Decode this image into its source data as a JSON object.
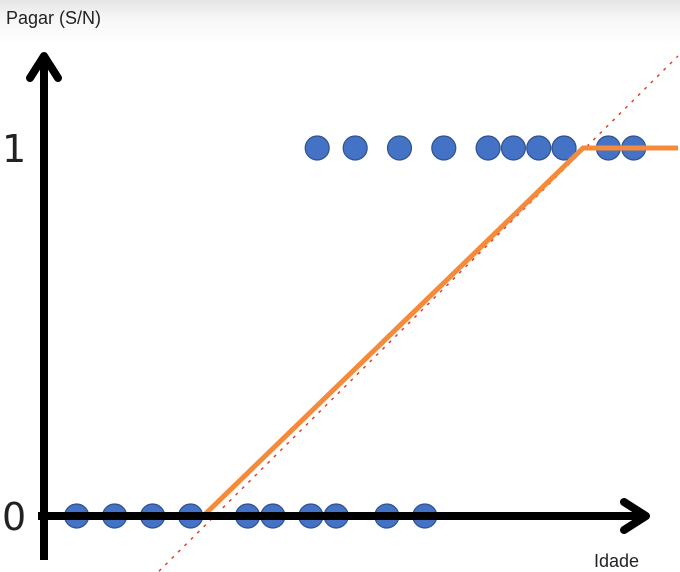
{
  "chart_data": {
    "type": "scatter",
    "title": "",
    "xlabel": "Idade",
    "ylabel": "Pagar (S/N)",
    "y_ticks": [
      "0",
      "1"
    ],
    "xlim": [
      0,
      100
    ],
    "ylim": [
      0,
      1
    ],
    "grid": false,
    "legend": "none",
    "series": [
      {
        "values": [
          {
            "x": 5,
            "y": 0
          },
          {
            "x": 11,
            "y": 0
          },
          {
            "x": 17,
            "y": 0
          },
          {
            "x": 23,
            "y": 0
          },
          {
            "x": 32,
            "y": 0
          },
          {
            "x": 36,
            "y": 0
          },
          {
            "x": 42,
            "y": 0
          },
          {
            "x": 46,
            "y": 0
          },
          {
            "x": 54,
            "y": 0
          },
          {
            "x": 60,
            "y": 0
          },
          {
            "x": 43,
            "y": 1
          },
          {
            "x": 49,
            "y": 1
          },
          {
            "x": 56,
            "y": 1
          },
          {
            "x": 63,
            "y": 1
          },
          {
            "x": 70,
            "y": 1
          },
          {
            "x": 74,
            "y": 1
          },
          {
            "x": 78,
            "y": 1
          },
          {
            "x": 82,
            "y": 1
          },
          {
            "x": 89,
            "y": 1
          },
          {
            "x": 93,
            "y": 1
          }
        ]
      }
    ],
    "fit_line": {
      "type": "clipped_linear",
      "points": [
        {
          "x": 0,
          "y": 0
        },
        {
          "x": 25,
          "y": 0
        },
        {
          "x": 85,
          "y": 1
        },
        {
          "x": 100,
          "y": 1
        }
      ]
    },
    "extended_line": {
      "style": "dotted",
      "points": [
        {
          "x": 18,
          "y": -0.15
        },
        {
          "x": 100,
          "y": 1.25
        }
      ]
    },
    "colors": {
      "points": "#4472C4",
      "point_outline": "#2F528F",
      "fit_line": "#F58A3A",
      "extended_line": "#E0402A",
      "axes": "#000000"
    }
  }
}
